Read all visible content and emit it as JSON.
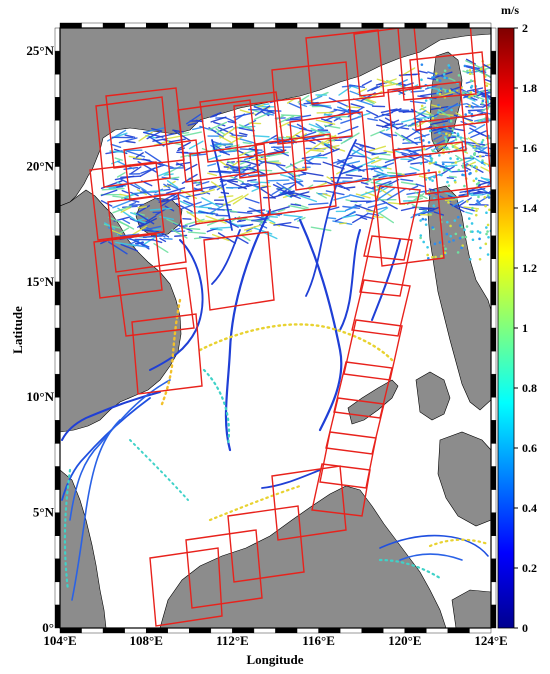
{
  "map": {
    "x_axis_label": "Longitude",
    "y_axis_label": "Latitude",
    "lon_range": [
      104,
      124
    ],
    "lat_range": [
      0,
      26
    ],
    "x_ticks": [
      {
        "value": 104,
        "label": "104°E"
      },
      {
        "value": 108,
        "label": "108°E"
      },
      {
        "value": 112,
        "label": "112°E"
      },
      {
        "value": 116,
        "label": "116°E"
      },
      {
        "value": 120,
        "label": "120°E"
      },
      {
        "value": 124,
        "label": "124°E"
      }
    ],
    "y_ticks": [
      {
        "value": 0,
        "label": "0°"
      },
      {
        "value": 5,
        "label": "5°N"
      },
      {
        "value": 10,
        "label": "10°N"
      },
      {
        "value": 15,
        "label": "15°N"
      },
      {
        "value": 20,
        "label": "20°N"
      },
      {
        "value": 25,
        "label": "25°N"
      }
    ],
    "colorbar": {
      "unit": "m/s",
      "range": [
        0,
        2
      ],
      "ticks": [
        "0",
        "0.2",
        "0.4",
        "0.6",
        "0.8",
        "1",
        "1.2",
        "1.4",
        "1.6",
        "1.8",
        "2"
      ]
    },
    "colors": {
      "land": "#8c8c8c",
      "sea": "#ffffff",
      "footprint": "#e8221c",
      "drifter_main": "#1f3fd6"
    }
  }
}
